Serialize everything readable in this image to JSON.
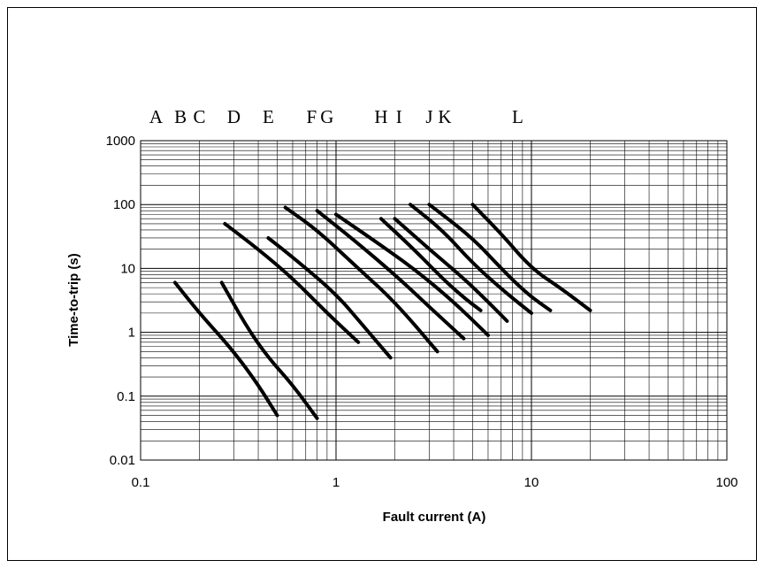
{
  "chart_data": {
    "type": "line",
    "xscale": "log",
    "yscale": "log",
    "xlabel": "Fault current (A)",
    "ylabel": "Time-to-trip (s)",
    "xlim": [
      0.1,
      100
    ],
    "ylim": [
      0.01,
      1000
    ],
    "x_ticks": [
      "0.1",
      "1",
      "10",
      "100"
    ],
    "y_ticks": [
      "0.01",
      "0.1",
      "1",
      "10",
      "100",
      "1000"
    ],
    "grid": true,
    "legend": "none",
    "curve_letters": [
      {
        "label": "A",
        "x": 0.12
      },
      {
        "label": "B",
        "x": 0.16
      },
      {
        "label": "C",
        "x": 0.2
      },
      {
        "label": "D",
        "x": 0.3
      },
      {
        "label": "E",
        "x": 0.45
      },
      {
        "label": "F",
        "x": 0.75
      },
      {
        "label": "G",
        "x": 0.9
      },
      {
        "label": "H",
        "x": 1.7
      },
      {
        "label": "I",
        "x": 2.1
      },
      {
        "label": "J",
        "x": 3.0
      },
      {
        "label": "K",
        "x": 3.6
      },
      {
        "label": "L",
        "x": 8.5
      }
    ],
    "series": [
      {
        "x": [
          0.15,
          0.2,
          0.3,
          0.4,
          0.5
        ],
        "y": [
          6,
          2,
          0.5,
          0.15,
          0.05
        ]
      },
      {
        "x": [
          0.26,
          0.35,
          0.45,
          0.6,
          0.8
        ],
        "y": [
          6,
          1.2,
          0.4,
          0.15,
          0.045
        ]
      },
      {
        "x": [
          0.27,
          0.4,
          0.6,
          0.9,
          1.3
        ],
        "y": [
          50,
          20,
          7,
          2,
          0.7
        ]
      },
      {
        "x": [
          0.45,
          0.6,
          1.0,
          1.4,
          1.9
        ],
        "y": [
          30,
          15,
          4,
          1.2,
          0.4
        ]
      },
      {
        "x": [
          0.55,
          0.8,
          1.3,
          2.0,
          3.3
        ],
        "y": [
          90,
          40,
          10,
          3,
          0.5
        ]
      },
      {
        "x": [
          0.8,
          1.2,
          2.0,
          3.0,
          4.5
        ],
        "y": [
          80,
          30,
          8,
          2.5,
          0.8
        ]
      },
      {
        "x": [
          1.0,
          1.5,
          2.5,
          4.0,
          6.0
        ],
        "y": [
          70,
          30,
          10,
          3,
          0.9
        ]
      },
      {
        "x": [
          1.7,
          2.5,
          3.5,
          4.5,
          5.5
        ],
        "y": [
          60,
          20,
          7,
          3.5,
          2.2
        ]
      },
      {
        "x": [
          2.0,
          3.0,
          4.5,
          6.0,
          7.5
        ],
        "y": [
          60,
          20,
          7,
          3,
          1.5
        ]
      },
      {
        "x": [
          2.4,
          3.5,
          5.0,
          7.5,
          10
        ],
        "y": [
          100,
          40,
          12,
          4,
          2
        ]
      },
      {
        "x": [
          3.0,
          5.0,
          7.0,
          9.5,
          12.5
        ],
        "y": [
          100,
          30,
          10,
          4,
          2.2
        ]
      },
      {
        "x": [
          5.0,
          7.0,
          10.0,
          14.0,
          20.0
        ],
        "y": [
          100,
          35,
          10,
          5,
          2.2
        ]
      }
    ]
  }
}
